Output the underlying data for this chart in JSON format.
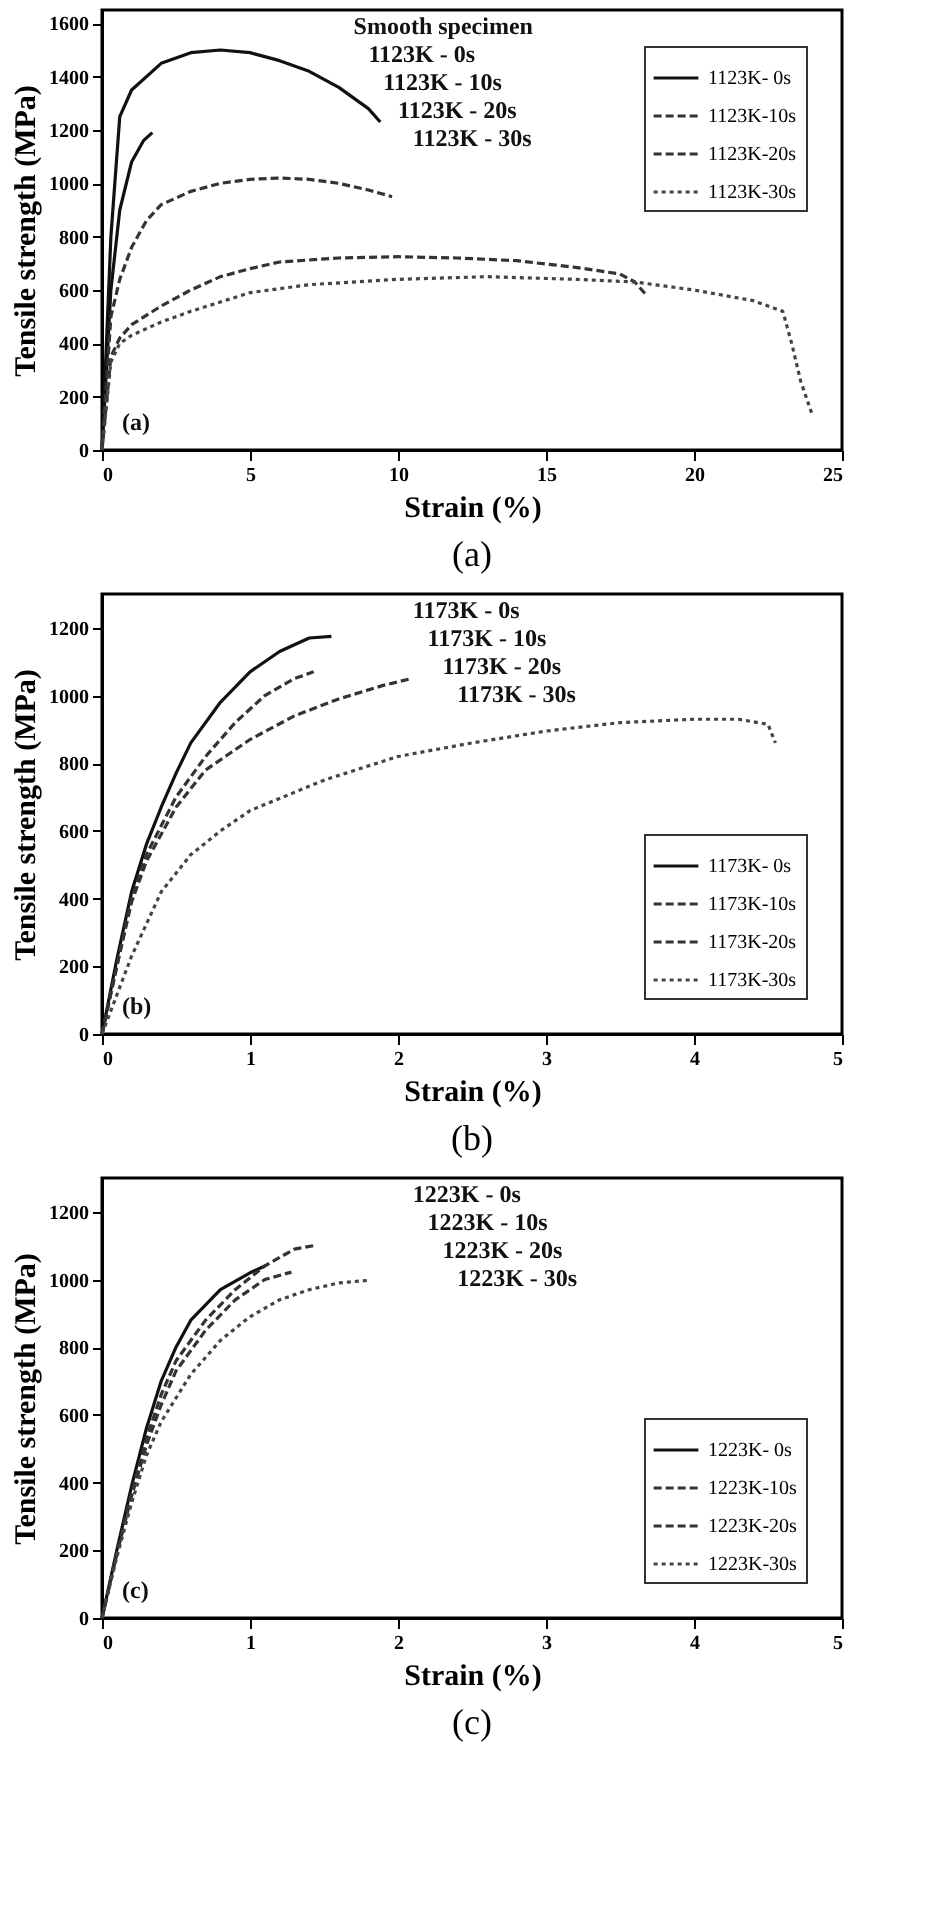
{
  "chart_data": [
    {
      "type": "line",
      "xlabel": "Strain (%)",
      "ylabel": "Tensile strength (MPa)",
      "xlim": [
        0,
        25
      ],
      "xticks": [
        0,
        5,
        10,
        15,
        20,
        25
      ],
      "ylim": [
        0,
        1650
      ],
      "yticks": [
        0,
        200,
        400,
        600,
        800,
        1000,
        1200,
        1400,
        1600
      ],
      "legend": "top right",
      "series": [
        {
          "color": "#111111",
          "line_style": "solid",
          "x": [
            0,
            0.3,
            0.6,
            1,
            2,
            3,
            4,
            5,
            6,
            7,
            8,
            9,
            9.4
          ],
          "values": [
            0,
            800,
            1250,
            1350,
            1450,
            1490,
            1500,
            1490,
            1460,
            1420,
            1360,
            1280,
            1230
          ]
        },
        {
          "name": "1123K- 0s",
          "color": "#111111",
          "line_style": "solid",
          "x": [
            0,
            0.3,
            0.6,
            1,
            1.4,
            1.7
          ],
          "values": [
            0,
            600,
            900,
            1080,
            1160,
            1190
          ]
        },
        {
          "name": "1123K-10s",
          "color": "#333333",
          "line_style": "dashed",
          "x": [
            0,
            0.3,
            0.6,
            1,
            1.5,
            2,
            3,
            4,
            5,
            6,
            7,
            8,
            9,
            9.8
          ],
          "values": [
            0,
            500,
            640,
            760,
            860,
            920,
            970,
            1000,
            1015,
            1020,
            1015,
            1000,
            975,
            950
          ]
        },
        {
          "name": "1123K-20s",
          "color": "#333333",
          "line_style": "dashed",
          "x": [
            0,
            0.3,
            0.6,
            1,
            2,
            3,
            4,
            5,
            6,
            8,
            10,
            12,
            14,
            16,
            17.5,
            18,
            18.4
          ],
          "values": [
            0,
            350,
            420,
            470,
            540,
            600,
            650,
            680,
            705,
            720,
            725,
            720,
            710,
            685,
            660,
            630,
            580
          ]
        },
        {
          "name": "1123K-30s",
          "color": "#444444",
          "line_style": "dotted",
          "x": [
            0,
            0.3,
            0.6,
            1,
            2,
            3,
            5,
            7,
            10,
            13,
            16,
            18,
            20,
            22,
            23,
            23.3,
            23.6,
            24
          ],
          "values": [
            0,
            330,
            400,
            430,
            480,
            520,
            590,
            620,
            640,
            650,
            640,
            630,
            600,
            560,
            520,
            400,
            260,
            130
          ]
        }
      ],
      "title": "(a)",
      "annotations": [
        "Smooth specimen",
        "1123K - 0s",
        "1123K - 10s",
        "1123K - 20s",
        "1123K - 30s",
        "(a)"
      ]
    },
    {
      "type": "line",
      "xlabel": "Strain (%)",
      "ylabel": "Tensile strength (MPa)",
      "xlim": [
        0,
        5
      ],
      "xticks": [
        0,
        1,
        2,
        3,
        4,
        5
      ],
      "ylim": [
        0,
        1300
      ],
      "yticks": [
        0,
        200,
        400,
        600,
        800,
        1000,
        1200
      ],
      "legend": "bottom right",
      "series": [
        {
          "name": "1173K- 0s",
          "color": "#111111",
          "line_style": "solid",
          "x": [
            0,
            0.1,
            0.2,
            0.3,
            0.4,
            0.5,
            0.6,
            0.8,
            1,
            1.2,
            1.4,
            1.55
          ],
          "values": [
            0,
            220,
            420,
            560,
            670,
            770,
            860,
            980,
            1070,
            1130,
            1170,
            1175
          ]
        },
        {
          "name": "1173K-10s",
          "color": "#333333",
          "line_style": "dashed",
          "x": [
            0,
            0.1,
            0.2,
            0.3,
            0.5,
            0.7,
            0.9,
            1.1,
            1.3,
            1.43
          ],
          "values": [
            0,
            200,
            400,
            530,
            700,
            820,
            920,
            1000,
            1050,
            1070
          ]
        },
        {
          "name": "1173K-20s",
          "color": "#333333",
          "line_style": "dashed",
          "x": [
            0,
            0.1,
            0.2,
            0.3,
            0.5,
            0.7,
            1,
            1.3,
            1.6,
            1.9,
            2.09
          ],
          "values": [
            0,
            200,
            390,
            510,
            670,
            780,
            870,
            940,
            990,
            1030,
            1050
          ]
        },
        {
          "name": "1173K-30s",
          "color": "#444444",
          "line_style": "dotted",
          "x": [
            0,
            0.2,
            0.4,
            0.6,
            0.8,
            1,
            1.5,
            2,
            2.5,
            3,
            3.5,
            4,
            4.3,
            4.5,
            4.55
          ],
          "values": [
            0,
            230,
            420,
            530,
            600,
            660,
            750,
            820,
            860,
            895,
            920,
            930,
            930,
            915,
            860
          ]
        }
      ],
      "title": "(b)",
      "annotations": [
        "1173K - 0s",
        "1173K - 10s",
        "1173K - 20s",
        "1173K - 30s",
        "(b)"
      ]
    },
    {
      "type": "line",
      "xlabel": "Strain (%)",
      "ylabel": "Tensile strength (MPa)",
      "xlim": [
        0,
        5
      ],
      "xticks": [
        0,
        1,
        2,
        3,
        4,
        5
      ],
      "ylim": [
        0,
        1300
      ],
      "yticks": [
        0,
        200,
        400,
        600,
        800,
        1000,
        1200
      ],
      "legend": "bottom right",
      "series": [
        {
          "name": "1223K- 0s",
          "color": "#111111",
          "line_style": "solid",
          "x": [
            0,
            0.1,
            0.2,
            0.3,
            0.4,
            0.5,
            0.6,
            0.8,
            1,
            1.1
          ],
          "values": [
            0,
            200,
            390,
            560,
            700,
            800,
            880,
            970,
            1020,
            1040
          ]
        },
        {
          "name": "1223K-10s",
          "color": "#333333",
          "line_style": "dashed",
          "x": [
            0,
            0.1,
            0.2,
            0.3,
            0.4,
            0.5,
            0.7,
            0.9,
            1.1,
            1.3,
            1.44
          ],
          "values": [
            0,
            190,
            370,
            530,
            660,
            760,
            880,
            970,
            1040,
            1090,
            1101
          ]
        },
        {
          "name": "1223K-20s",
          "color": "#333333",
          "line_style": "dashed",
          "x": [
            0,
            0.1,
            0.2,
            0.3,
            0.4,
            0.5,
            0.7,
            0.9,
            1.1,
            1.28
          ],
          "values": [
            0,
            190,
            360,
            510,
            630,
            730,
            850,
            940,
            1000,
            1022
          ]
        },
        {
          "name": "1223K-30s",
          "color": "#444444",
          "line_style": "dotted",
          "x": [
            0,
            0.1,
            0.2,
            0.3,
            0.4,
            0.6,
            0.8,
            1,
            1.2,
            1.4,
            1.6,
            1.81
          ],
          "values": [
            0,
            180,
            340,
            480,
            580,
            720,
            820,
            890,
            940,
            970,
            990,
            998
          ]
        }
      ],
      "title": "(c)",
      "annotations": [
        "1223K - 0s",
        "1223K - 10s",
        "1223K - 20s",
        "1223K - 30s",
        "(c)"
      ]
    }
  ]
}
